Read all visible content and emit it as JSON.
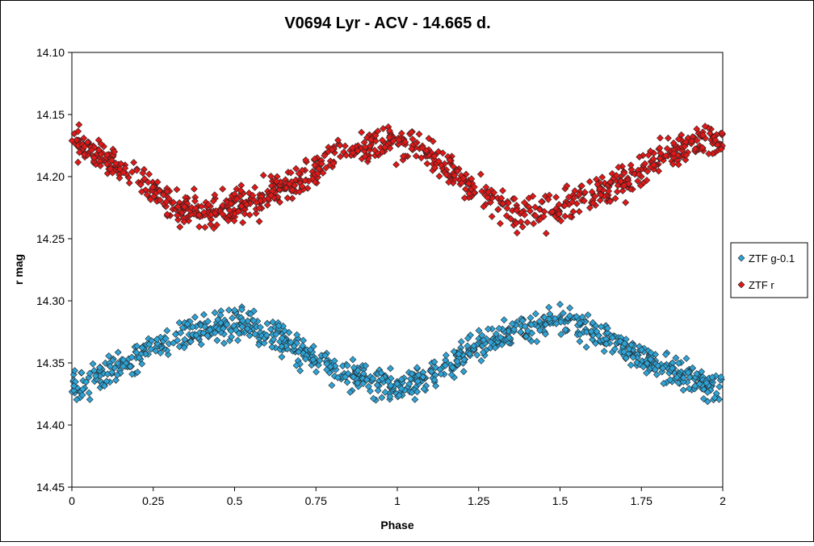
{
  "chart_data": {
    "type": "scatter",
    "title": "V0694 Lyr - ACV - 14.665 d.",
    "xlabel": "Phase",
    "ylabel": "r mag",
    "xlim": [
      0,
      2
    ],
    "ylim": [
      14.1,
      14.45
    ],
    "y_inverted": true,
    "grid": false,
    "legend_position": "right",
    "x_ticks": [
      "0",
      "0.25",
      "0.5",
      "0.75",
      "1",
      "1.25",
      "1.5",
      "1.75",
      "2"
    ],
    "y_ticks": [
      "14.10",
      "14.15",
      "14.20",
      "14.25",
      "14.30",
      "14.35",
      "14.40",
      "14.45"
    ],
    "series": [
      {
        "name": "ZTF g-0.1",
        "color": "#2ea3d6",
        "marker": "diamond",
        "x": [
          0.0,
          0.05,
          0.1,
          0.15,
          0.2,
          0.25,
          0.3,
          0.35,
          0.4,
          0.45,
          0.5,
          0.55,
          0.6,
          0.65,
          0.7,
          0.75,
          0.8,
          0.85,
          0.9,
          0.95,
          1.0,
          1.05,
          1.1,
          1.15,
          1.2,
          1.25,
          1.3,
          1.35,
          1.4,
          1.45,
          1.5,
          1.55,
          1.6,
          1.65,
          1.7,
          1.75,
          1.8,
          1.85,
          1.9,
          1.95,
          2.0
        ],
        "y": [
          14.37,
          14.365,
          14.36,
          14.353,
          14.345,
          14.337,
          14.33,
          14.325,
          14.322,
          14.32,
          14.318,
          14.32,
          14.325,
          14.332,
          14.34,
          14.347,
          14.353,
          14.358,
          14.363,
          14.367,
          14.37,
          14.365,
          14.36,
          14.353,
          14.345,
          14.337,
          14.33,
          14.325,
          14.322,
          14.32,
          14.318,
          14.32,
          14.325,
          14.332,
          14.34,
          14.347,
          14.353,
          14.358,
          14.363,
          14.367,
          14.37
        ]
      },
      {
        "name": "ZTF r",
        "color": "#e01818",
        "marker": "diamond",
        "x": [
          0.0,
          0.05,
          0.1,
          0.15,
          0.2,
          0.25,
          0.3,
          0.35,
          0.4,
          0.45,
          0.5,
          0.55,
          0.6,
          0.65,
          0.7,
          0.75,
          0.8,
          0.85,
          0.9,
          0.95,
          1.0,
          1.05,
          1.1,
          1.15,
          1.2,
          1.25,
          1.3,
          1.35,
          1.4,
          1.45,
          1.5,
          1.55,
          1.6,
          1.65,
          1.7,
          1.75,
          1.8,
          1.85,
          1.9,
          1.95,
          2.0
        ],
        "y": [
          14.172,
          14.176,
          14.183,
          14.193,
          14.203,
          14.212,
          14.22,
          14.226,
          14.228,
          14.228,
          14.225,
          14.22,
          14.214,
          14.21,
          14.205,
          14.195,
          14.186,
          14.18,
          14.175,
          14.17,
          14.172,
          14.176,
          14.183,
          14.193,
          14.203,
          14.212,
          14.22,
          14.226,
          14.228,
          14.228,
          14.225,
          14.22,
          14.214,
          14.21,
          14.205,
          14.195,
          14.186,
          14.18,
          14.175,
          14.17,
          14.172
        ],
        "noise": 0.035
      }
    ]
  }
}
